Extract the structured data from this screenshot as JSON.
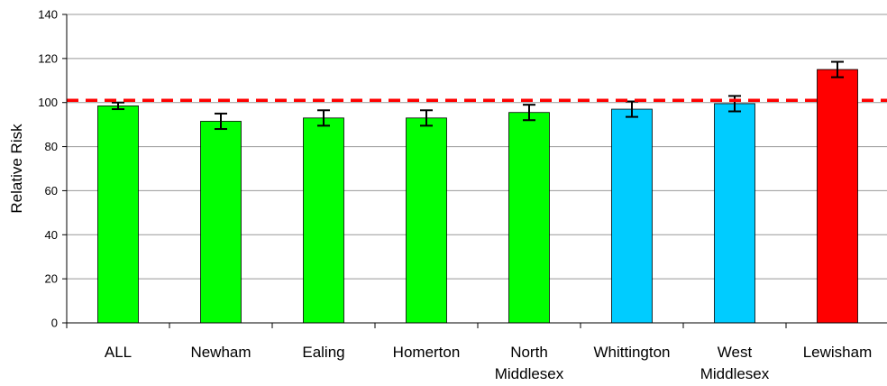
{
  "chart_data": {
    "type": "bar",
    "categories": [
      [
        "ALL"
      ],
      [
        "Newham"
      ],
      [
        "Ealing"
      ],
      [
        "Homerton"
      ],
      [
        "North",
        "Middlesex"
      ],
      [
        "Whittington"
      ],
      [
        "West",
        "Middlesex"
      ],
      [
        "Lewisham"
      ]
    ],
    "values": [
      98.5,
      91.5,
      93,
      93,
      95.5,
      97,
      99.5,
      115
    ],
    "error_low": [
      97,
      88,
      89.5,
      89.5,
      92,
      93.5,
      96,
      111.5
    ],
    "error_high": [
      100,
      95,
      96.5,
      96.5,
      99,
      100.5,
      103,
      118.5
    ],
    "bar_colors": [
      "#00ff00",
      "#00ff00",
      "#00ff00",
      "#00ff00",
      "#00ff00",
      "#00ccff",
      "#00ccff",
      "#ff0000"
    ],
    "reference_line": {
      "value": 101,
      "color": "#ff0000",
      "style": "dashed"
    },
    "title": "",
    "xlabel": "",
    "ylabel": "Relative Risk",
    "ylim": [
      0,
      140
    ],
    "yticks": [
      0,
      20,
      40,
      60,
      80,
      100,
      120,
      140
    ],
    "grid": true,
    "gridline_color": "#999999"
  }
}
